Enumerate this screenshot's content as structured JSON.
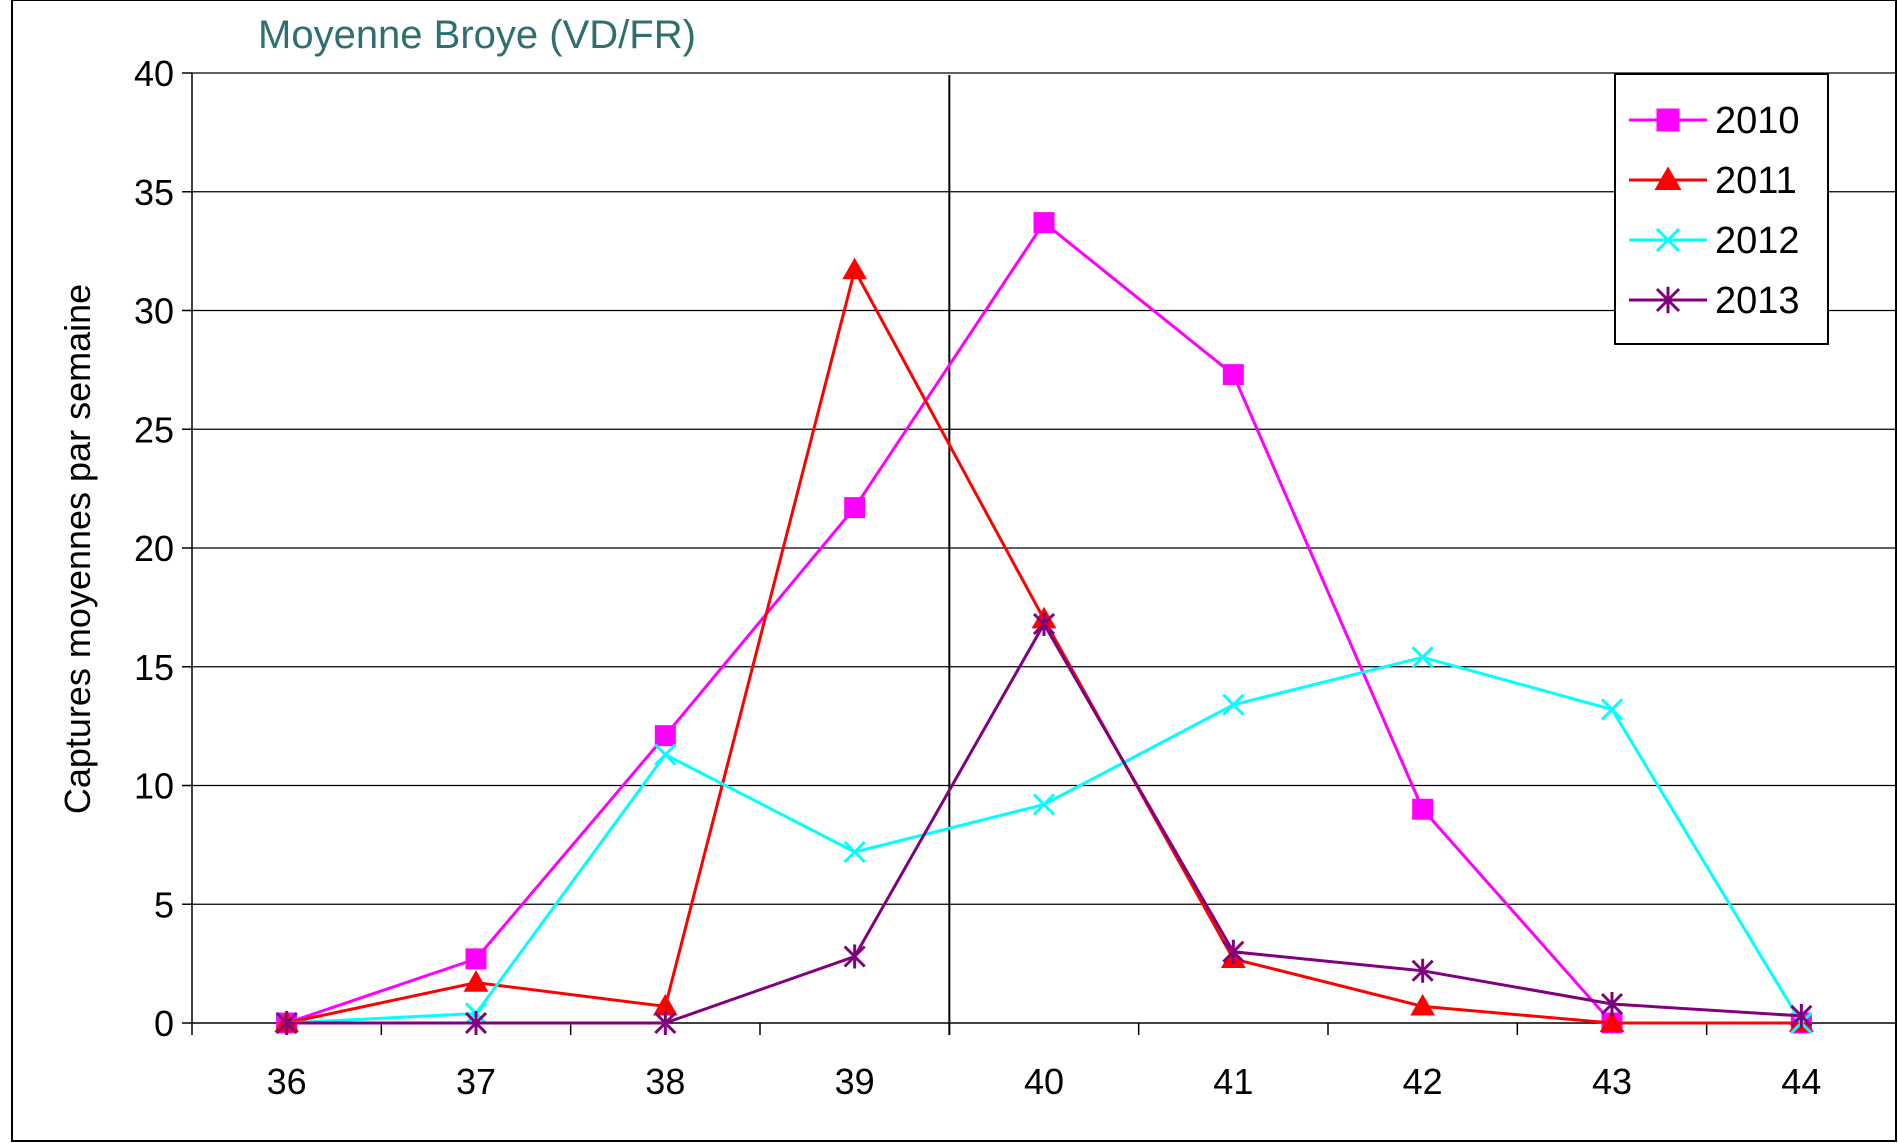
{
  "chart_data": {
    "type": "line",
    "title": "Moyenne Broye (VD/FR)",
    "xlabel": "",
    "ylabel": "Captures moyennes par semaine",
    "categories": [
      "36",
      "37",
      "38",
      "39",
      "40",
      "41",
      "42",
      "43",
      "44"
    ],
    "ylim": [
      0,
      40
    ],
    "yticks": [
      "0",
      "5",
      "10",
      "15",
      "20",
      "25",
      "30",
      "35",
      "40"
    ],
    "grid": "horizontal",
    "reference_line_between": [
      "39",
      "40"
    ],
    "legend_position": "top-right",
    "series": [
      {
        "name": "2010",
        "color": "#ff00ff",
        "marker": "square",
        "values": [
          0,
          2.7,
          12.1,
          21.7,
          33.7,
          27.3,
          9.0,
          0,
          0
        ]
      },
      {
        "name": "2011",
        "color": "#ff0000",
        "marker": "triangle",
        "values": [
          0,
          1.7,
          0.7,
          31.7,
          17.0,
          2.7,
          0.7,
          0,
          0
        ]
      },
      {
        "name": "2012",
        "color": "#00ffff",
        "marker": "x",
        "values": [
          0,
          0.4,
          11.3,
          7.2,
          9.2,
          13.4,
          15.4,
          13.2,
          0
        ]
      },
      {
        "name": "2013",
        "color": "#800080",
        "marker": "star",
        "values": [
          0,
          0,
          0,
          2.8,
          16.8,
          3.0,
          2.2,
          0.8,
          0.3
        ]
      }
    ]
  }
}
